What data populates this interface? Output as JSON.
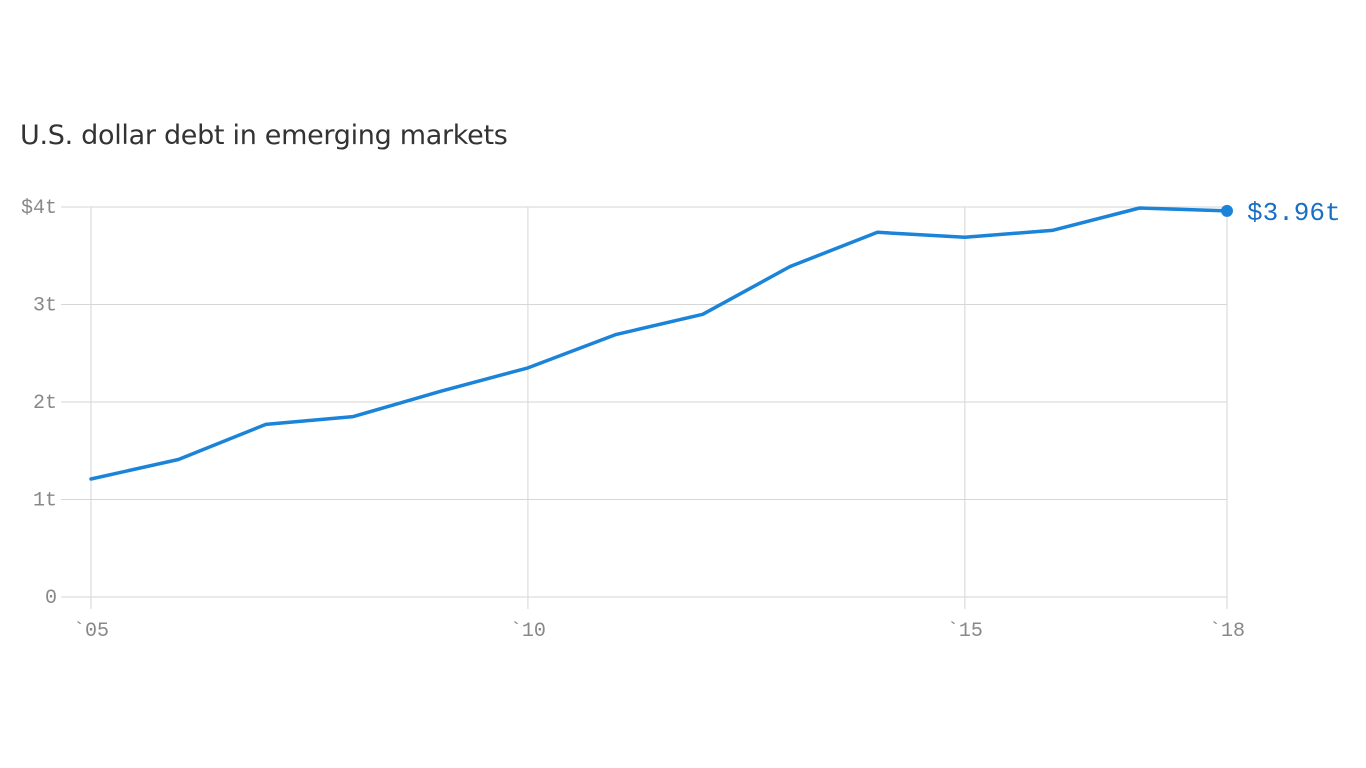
{
  "colors": {
    "series": "#1b84d8",
    "end_label": "#1a6fc4",
    "grid": "#d6d6d6",
    "axis_text": "#888888",
    "title": "#333333"
  },
  "chart_data": {
    "type": "line",
    "title": "U.S. dollar debt in emerging markets",
    "xlabel": "",
    "ylabel": "",
    "x": [
      2005,
      2006,
      2007,
      2008,
      2009,
      2010,
      2011,
      2012,
      2013,
      2014,
      2015,
      2016,
      2017,
      2018
    ],
    "series": [
      {
        "values": [
          1.21,
          1.41,
          1.77,
          1.85,
          2.11,
          2.35,
          2.69,
          2.9,
          3.39,
          3.74,
          3.69,
          3.76,
          3.99,
          3.96
        ]
      }
    ],
    "xlim": [
      2005,
      2018
    ],
    "ylim": [
      0,
      4
    ],
    "x_ticks": [
      {
        "value": 2005,
        "label": "`05"
      },
      {
        "value": 2010,
        "label": "`10"
      },
      {
        "value": 2015,
        "label": "`15"
      },
      {
        "value": 2018,
        "label": "`18"
      }
    ],
    "y_ticks": [
      {
        "value": 0,
        "label": "0"
      },
      {
        "value": 1,
        "label": "1t"
      },
      {
        "value": 2,
        "label": "2t"
      },
      {
        "value": 3,
        "label": "3t"
      },
      {
        "value": 4,
        "label": "$4t"
      }
    ],
    "end_label": "$3.96t",
    "grid": true,
    "legend": "none"
  }
}
